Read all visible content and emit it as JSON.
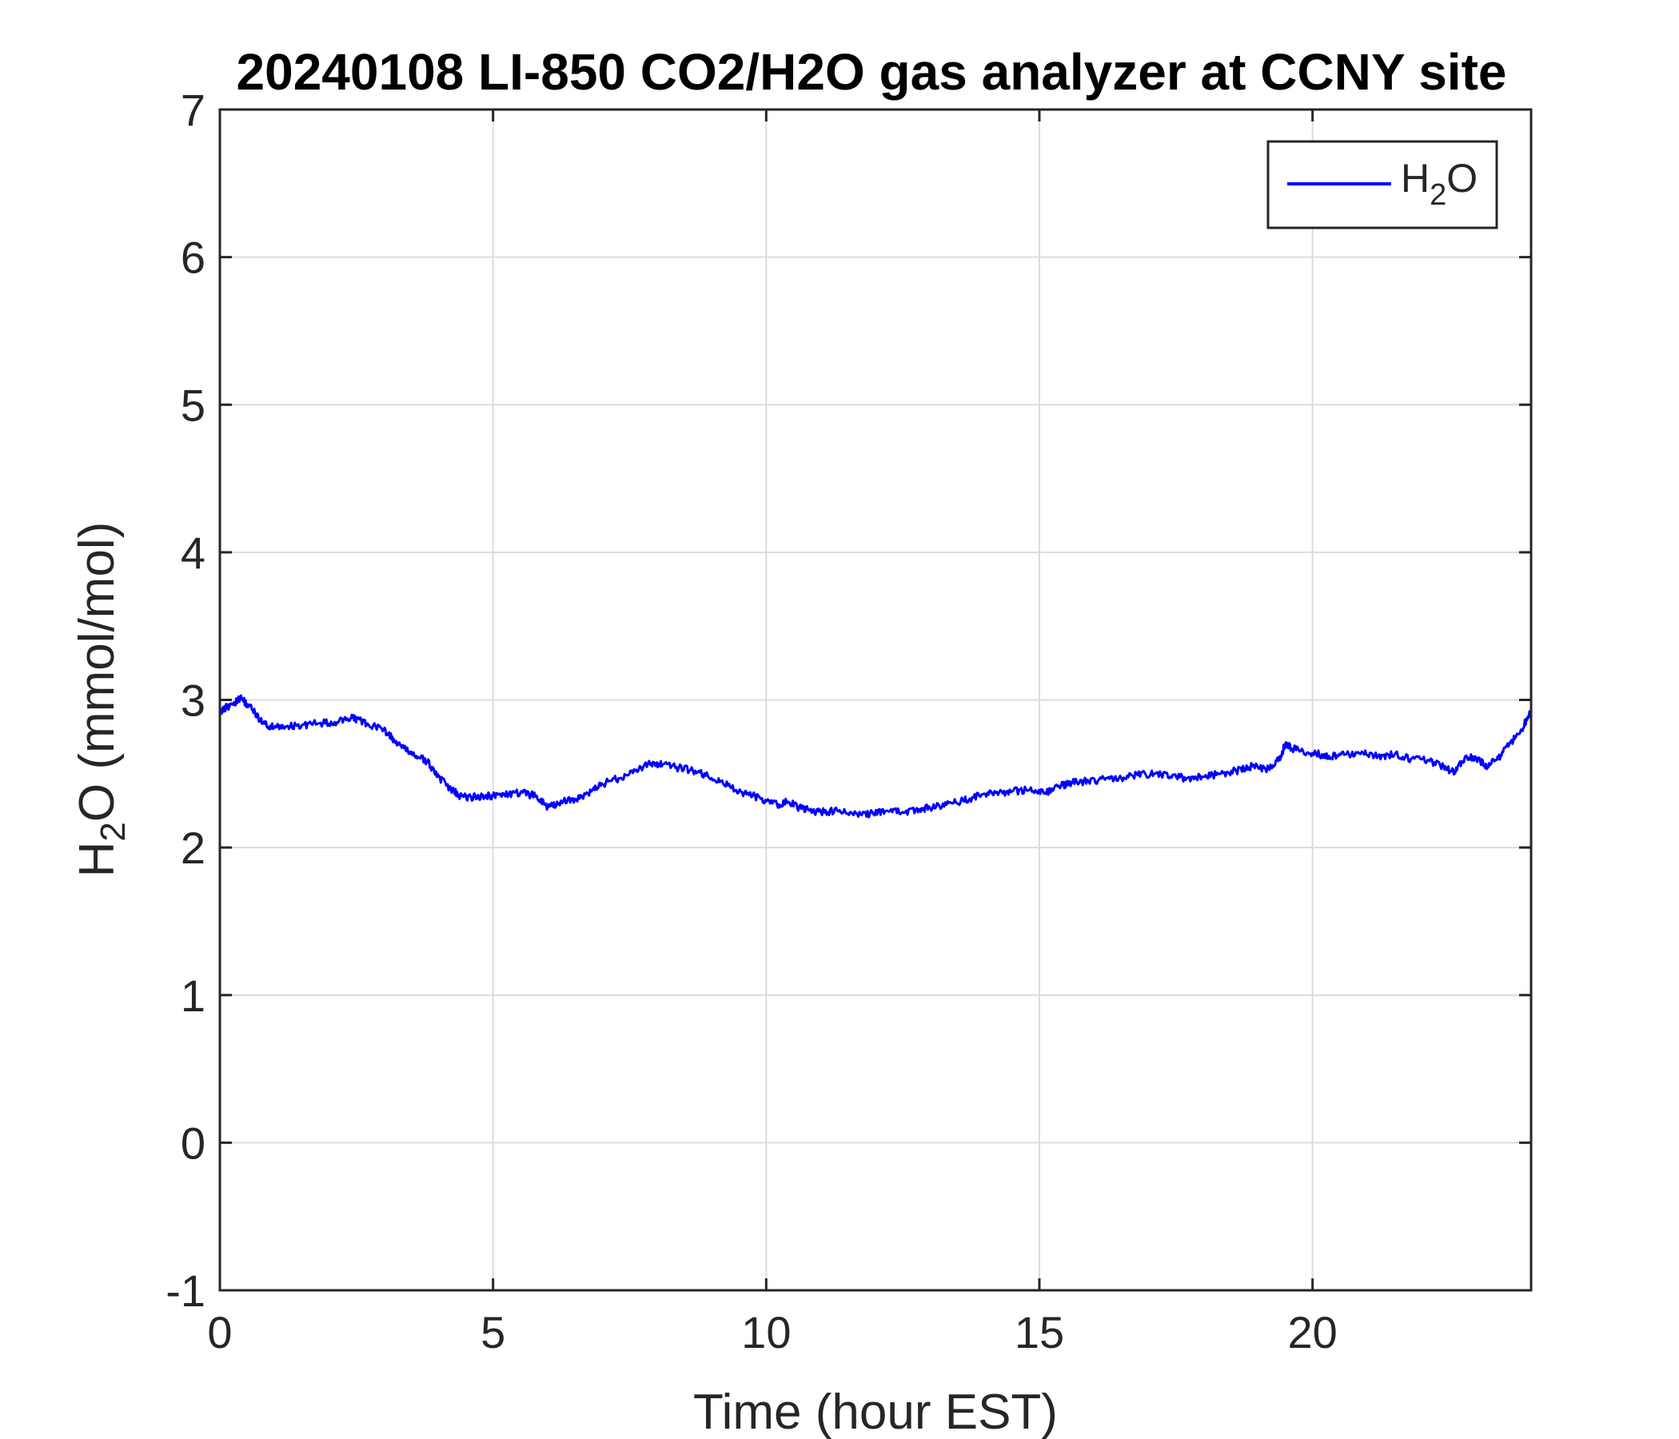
{
  "chart_data": {
    "type": "line",
    "title": "20240108 LI-850 CO2/H2O gas analyzer at CCNY site",
    "xlabel": "Time (hour EST)",
    "ylabel": {
      "main": "H",
      "sub": "2",
      "rest": "O (mmol/mol)"
    },
    "xlim": [
      0,
      24
    ],
    "ylim": [
      -1,
      7
    ],
    "xticks": [
      0,
      5,
      10,
      15,
      20
    ],
    "yticks": [
      -1,
      0,
      1,
      2,
      3,
      4,
      5,
      6,
      7
    ],
    "grid": true,
    "legend_position": "top-right",
    "series": [
      {
        "legend": {
          "main": "H",
          "sub": "2",
          "rest": "O"
        },
        "color": "#0000ff",
        "x": [
          0.0,
          0.2,
          0.4,
          0.6,
          0.8,
          1.0,
          1.2,
          1.5,
          1.8,
          2.1,
          2.4,
          2.5,
          2.7,
          3.0,
          3.2,
          3.4,
          3.6,
          3.8,
          4.0,
          4.2,
          4.4,
          4.6,
          4.8,
          5.0,
          5.2,
          5.5,
          5.8,
          6.0,
          6.2,
          6.5,
          6.8,
          7.0,
          7.3,
          7.6,
          7.9,
          8.1,
          8.4,
          8.7,
          9.0,
          9.3,
          9.6,
          9.9,
          10.2,
          10.4,
          10.6,
          10.8,
          11.0,
          11.3,
          11.6,
          11.9,
          12.2,
          12.5,
          12.8,
          13.0,
          13.3,
          13.6,
          13.9,
          14.2,
          14.5,
          14.8,
          15.1,
          15.4,
          15.6,
          15.9,
          16.2,
          16.5,
          16.8,
          17.1,
          17.4,
          17.7,
          18.0,
          18.3,
          18.6,
          18.9,
          19.2,
          19.4,
          19.5,
          19.7,
          20.0,
          20.3,
          20.6,
          20.9,
          21.2,
          21.5,
          21.8,
          22.1,
          22.4,
          22.6,
          22.8,
          23.0,
          23.2,
          23.4,
          23.6,
          23.8,
          24.0
        ],
        "y": [
          2.92,
          2.97,
          3.01,
          2.93,
          2.84,
          2.81,
          2.82,
          2.83,
          2.84,
          2.85,
          2.88,
          2.87,
          2.84,
          2.8,
          2.72,
          2.66,
          2.62,
          2.58,
          2.48,
          2.4,
          2.35,
          2.34,
          2.35,
          2.35,
          2.36,
          2.37,
          2.35,
          2.27,
          2.3,
          2.33,
          2.38,
          2.43,
          2.47,
          2.52,
          2.57,
          2.56,
          2.54,
          2.52,
          2.47,
          2.42,
          2.37,
          2.33,
          2.29,
          2.31,
          2.27,
          2.25,
          2.24,
          2.25,
          2.22,
          2.23,
          2.25,
          2.24,
          2.26,
          2.27,
          2.29,
          2.32,
          2.35,
          2.37,
          2.38,
          2.39,
          2.37,
          2.42,
          2.44,
          2.45,
          2.46,
          2.47,
          2.49,
          2.5,
          2.48,
          2.47,
          2.48,
          2.5,
          2.52,
          2.55,
          2.53,
          2.6,
          2.7,
          2.66,
          2.64,
          2.62,
          2.63,
          2.65,
          2.62,
          2.63,
          2.6,
          2.59,
          2.55,
          2.5,
          2.62,
          2.6,
          2.55,
          2.6,
          2.7,
          2.78,
          2.93
        ]
      }
    ]
  }
}
